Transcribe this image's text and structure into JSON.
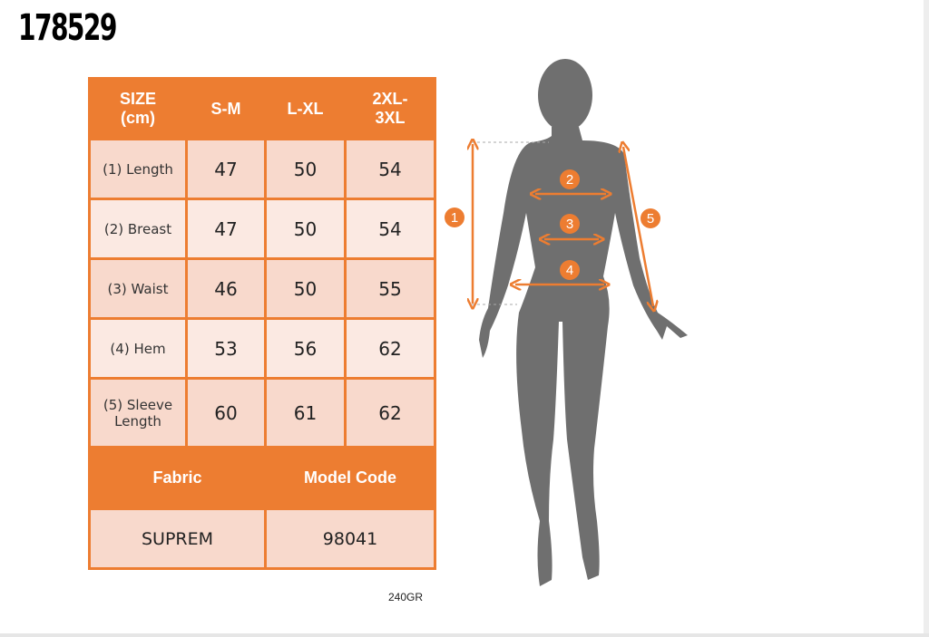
{
  "product_code": "178529",
  "table": {
    "header": [
      "SIZE\n(cm)",
      "S-M",
      "L-XL",
      "2XL-\n3XL"
    ],
    "header_lines": [
      [
        "SIZE",
        "(cm)"
      ],
      [
        "S-M"
      ],
      [
        "L-XL"
      ],
      [
        "2XL-",
        "3XL"
      ]
    ],
    "rows": [
      {
        "label": "(1) Length",
        "values": [
          "47",
          "50",
          "54"
        ]
      },
      {
        "label": "(2) Breast",
        "values": [
          "47",
          "50",
          "54"
        ]
      },
      {
        "label": "(3) Waist",
        "values": [
          "46",
          "50",
          "55"
        ]
      },
      {
        "label": "(4) Hem",
        "values": [
          "53",
          "56",
          "62"
        ]
      },
      {
        "label_lines": [
          "(5) Sleeve",
          "Length"
        ],
        "values": [
          "60",
          "61",
          "62"
        ]
      }
    ],
    "fabric_label": "Fabric",
    "model_code_label": "Model Code",
    "fabric": "SUPREM",
    "model_code": "98041"
  },
  "weight": "240GR",
  "figure": {
    "markers": [
      "1",
      "2",
      "3",
      "4",
      "5"
    ]
  },
  "colors": {
    "accent": "#ed7d31",
    "silhouette": "#6f6f6f",
    "row_dark": "#f8d9cc",
    "row_light": "#fbe9e2"
  }
}
